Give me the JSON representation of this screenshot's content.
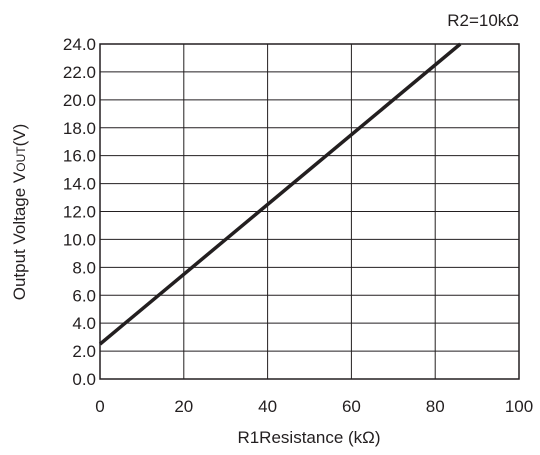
{
  "chart_data": {
    "type": "line",
    "annotation": "R2=10kΩ",
    "xlabel": "R1Resistance (kΩ)",
    "ylabel": {
      "main": "Output Voltage V",
      "sub": "OUT",
      "unit": "(V)"
    },
    "xlim": [
      0,
      100
    ],
    "ylim": [
      0,
      24
    ],
    "x_ticks": [
      "0",
      "20",
      "40",
      "60",
      "80",
      "100"
    ],
    "y_ticks": [
      "0.0",
      "2.0",
      "4.0",
      "6.0",
      "8.0",
      "10.0",
      "12.0",
      "14.0",
      "16.0",
      "18.0",
      "20.0",
      "22.0",
      "24.0"
    ],
    "grid": true,
    "series": [
      {
        "x": [
          0,
          86
        ],
        "y": [
          2.5,
          24
        ],
        "color": "#231f20"
      }
    ]
  }
}
